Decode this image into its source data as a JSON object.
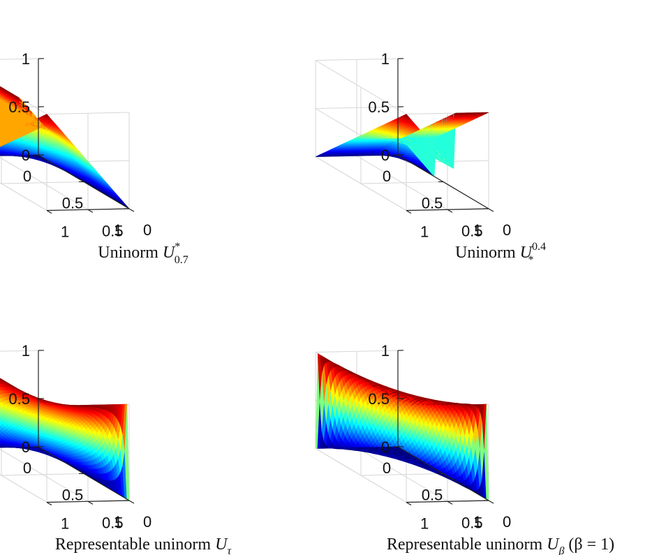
{
  "colors": {
    "background": "#ffffff",
    "grid": "#d6d6d6",
    "axis": "#222222",
    "colormap": "jet"
  },
  "chart_data": [
    {
      "type": "surface",
      "id": "p1",
      "function": "uninorm U*_0.7",
      "caption": {
        "prefix": "Uninorm ",
        "symbol": "U",
        "sub": "0.7",
        "sup": "*",
        "suffix": ""
      },
      "x_ticks": [
        "0",
        "0.5",
        "1"
      ],
      "y_ticks": [
        "0",
        "0.5",
        "1"
      ],
      "z_ticks": [
        "0",
        "0.5",
        "1"
      ],
      "xlim": [
        0,
        1
      ],
      "ylim": [
        0,
        1
      ],
      "zlim": [
        0,
        1
      ],
      "grid": true
    },
    {
      "type": "surface",
      "id": "p2",
      "function": "uninorm U^0.4_*",
      "caption": {
        "prefix": "Uninorm ",
        "symbol": "U",
        "sub": "*",
        "sup": "0.4",
        "suffix": ""
      },
      "x_ticks": [
        "0",
        "0.5",
        "1"
      ],
      "y_ticks": [
        "0",
        "0.5",
        "1"
      ],
      "z_ticks": [
        "0",
        "0.5",
        "1"
      ],
      "xlim": [
        0,
        1
      ],
      "ylim": [
        0,
        1
      ],
      "zlim": [
        0,
        1
      ],
      "grid": true
    },
    {
      "type": "surface",
      "id": "p3",
      "function": "representable uninorm U_tau",
      "caption": {
        "prefix": "Representable uninorm ",
        "symbol": "U",
        "sub": "τ",
        "sup": "",
        "suffix": ""
      },
      "x_ticks": [
        "0",
        "0.5",
        "1"
      ],
      "y_ticks": [
        "0",
        "0.5",
        "1"
      ],
      "z_ticks": [
        "0",
        "0.5",
        "1"
      ],
      "xlim": [
        0,
        1
      ],
      "ylim": [
        0,
        1
      ],
      "zlim": [
        0,
        1
      ],
      "grid": true
    },
    {
      "type": "surface",
      "id": "p4",
      "function": "representable uninorm U_beta, beta = 1",
      "caption": {
        "prefix": "Representable uninorm ",
        "symbol": "U",
        "sub": "β",
        "sup": "",
        "suffix": " (β = 1)"
      },
      "x_ticks": [
        "0",
        "0.5",
        "1"
      ],
      "y_ticks": [
        "0",
        "0.5",
        "1"
      ],
      "z_ticks": [
        "0",
        "0.5",
        "1"
      ],
      "xlim": [
        0,
        1
      ],
      "ylim": [
        0,
        1
      ],
      "zlim": [
        0,
        1
      ],
      "grid": true
    }
  ]
}
